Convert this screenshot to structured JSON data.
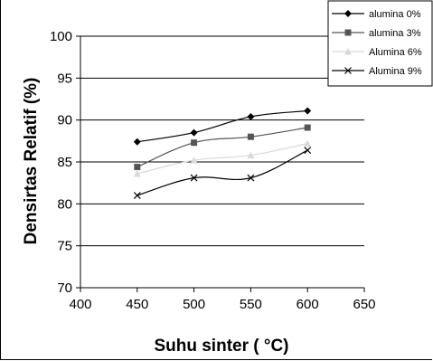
{
  "chart_data": {
    "type": "line",
    "xlabel": "Suhu sinter ( °C)",
    "ylabel": "Densirtas Relatif (%)",
    "xlim": [
      400,
      650
    ],
    "ylim": [
      70,
      100
    ],
    "xticks": [
      400,
      450,
      500,
      550,
      600,
      650
    ],
    "yticks": [
      70,
      75,
      80,
      85,
      90,
      95,
      100
    ],
    "grid": "horizontal",
    "legend_position": "top-right",
    "x": [
      450,
      500,
      550,
      600
    ],
    "series": [
      {
        "name": "alumina 0%",
        "values": [
          87.4,
          88.5,
          90.4,
          91.1
        ],
        "marker": "diamond",
        "color": "#000000"
      },
      {
        "name": "alumina 3%",
        "values": [
          84.4,
          87.3,
          88.0,
          89.1
        ],
        "marker": "square",
        "color": "#555555"
      },
      {
        "name": "Alumina 6%",
        "values": [
          83.6,
          85.2,
          85.8,
          87.2
        ],
        "marker": "triangle",
        "color": "#d9d9d9"
      },
      {
        "name": "Alumina 9%",
        "values": [
          81.0,
          83.1,
          83.1,
          86.4
        ],
        "marker": "x",
        "color": "#000000"
      }
    ]
  }
}
